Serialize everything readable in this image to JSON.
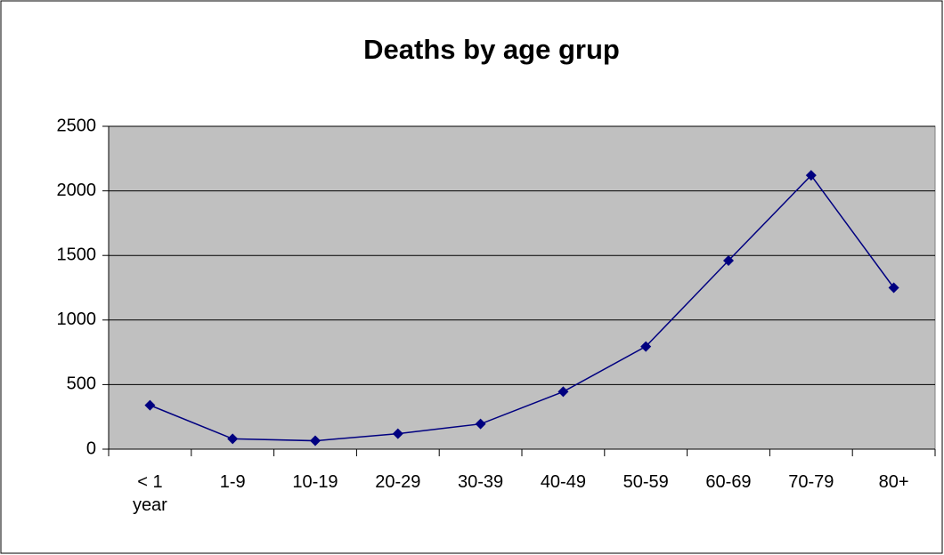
{
  "chart_data": {
    "type": "line",
    "title": "Deaths by age grup",
    "categories": [
      "< 1 year",
      "1-9",
      "10-19",
      "20-29",
      "30-39",
      "40-49",
      "50-59",
      "60-69",
      "70-79",
      "80+"
    ],
    "series": [
      {
        "color": "#000080",
        "values": [
          340,
          80,
          65,
          120,
          195,
          445,
          795,
          1460,
          2120,
          1250
        ]
      }
    ],
    "ylim": [
      0,
      2500
    ],
    "yticks": [
      0,
      500,
      1000,
      1500,
      2000,
      2500
    ],
    "grid": true
  }
}
